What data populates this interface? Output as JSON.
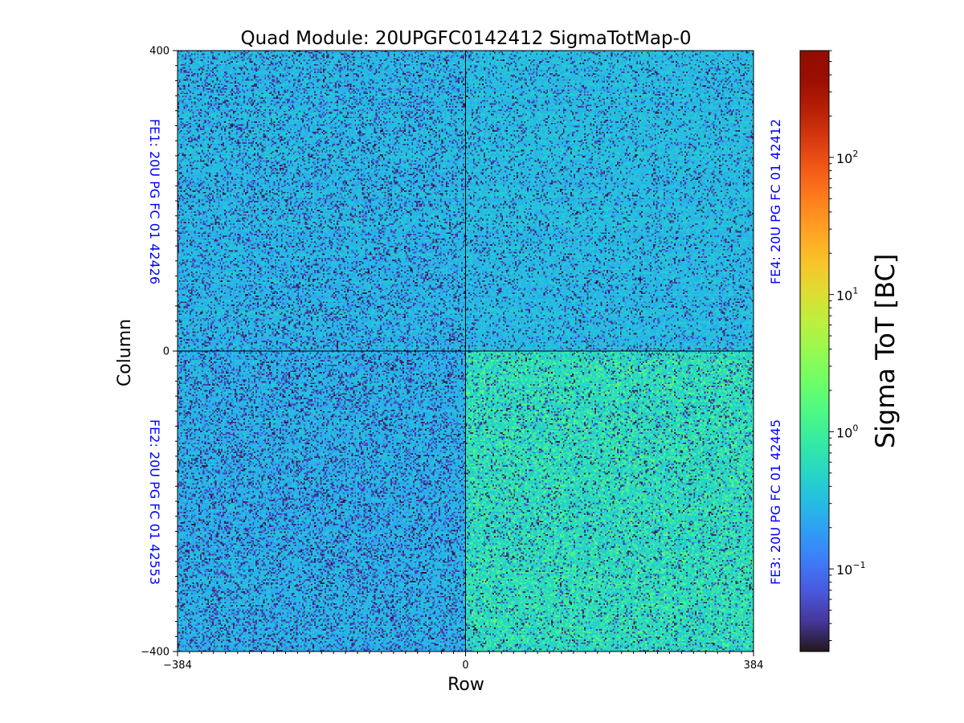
{
  "chart_data": {
    "type": "heatmap",
    "title": "Quad Module: 20UPGFC0142412 SigmaTotMap-0",
    "xlabel": "Row",
    "ylabel": "Column",
    "xlim": [
      -384,
      384
    ],
    "ylim": [
      -400,
      400
    ],
    "x_ticks": [
      {
        "value": -384,
        "label": "−384"
      },
      {
        "value": 0,
        "label": "0"
      },
      {
        "value": 384,
        "label": "384"
      }
    ],
    "y_ticks": [
      {
        "value": 400,
        "label": "400"
      },
      {
        "value": 0,
        "label": "0"
      },
      {
        "value": -400,
        "label": "−400"
      }
    ],
    "quadrants": [
      {
        "id": "FE1",
        "position": "top-left",
        "label": "FE1: 20U PG FC 01 42426",
        "label_color": "#0000ff",
        "mean_sigma_tot": 0.3,
        "dark_fraction": 0.2
      },
      {
        "id": "FE4",
        "position": "top-right",
        "label": "FE4: 20U PG FC 01 42412",
        "label_color": "#0000ff",
        "mean_sigma_tot": 0.32,
        "dark_fraction": 0.14
      },
      {
        "id": "FE2",
        "position": "bottom-left",
        "label": "FE2: 20U PG FC 01 42553",
        "label_color": "#0000ff",
        "mean_sigma_tot": 0.28,
        "dark_fraction": 0.24
      },
      {
        "id": "FE3",
        "position": "bottom-right",
        "label": "FE3: 20U PG FC 01 42445",
        "label_color": "#0000ff",
        "mean_sigma_tot": 0.5,
        "dark_fraction": 0.12
      }
    ],
    "colorbar": {
      "label": "Sigma ToT [BC]",
      "scale": "log",
      "colormap": "turbo",
      "min": 0.025,
      "max": 600,
      "ticks": [
        {
          "value": 0.1,
          "base": "10",
          "exp": "−1"
        },
        {
          "value": 1,
          "base": "10",
          "exp": "0"
        },
        {
          "value": 10,
          "base": "10",
          "exp": "1"
        },
        {
          "value": 100,
          "base": "10",
          "exp": "2"
        }
      ]
    }
  }
}
